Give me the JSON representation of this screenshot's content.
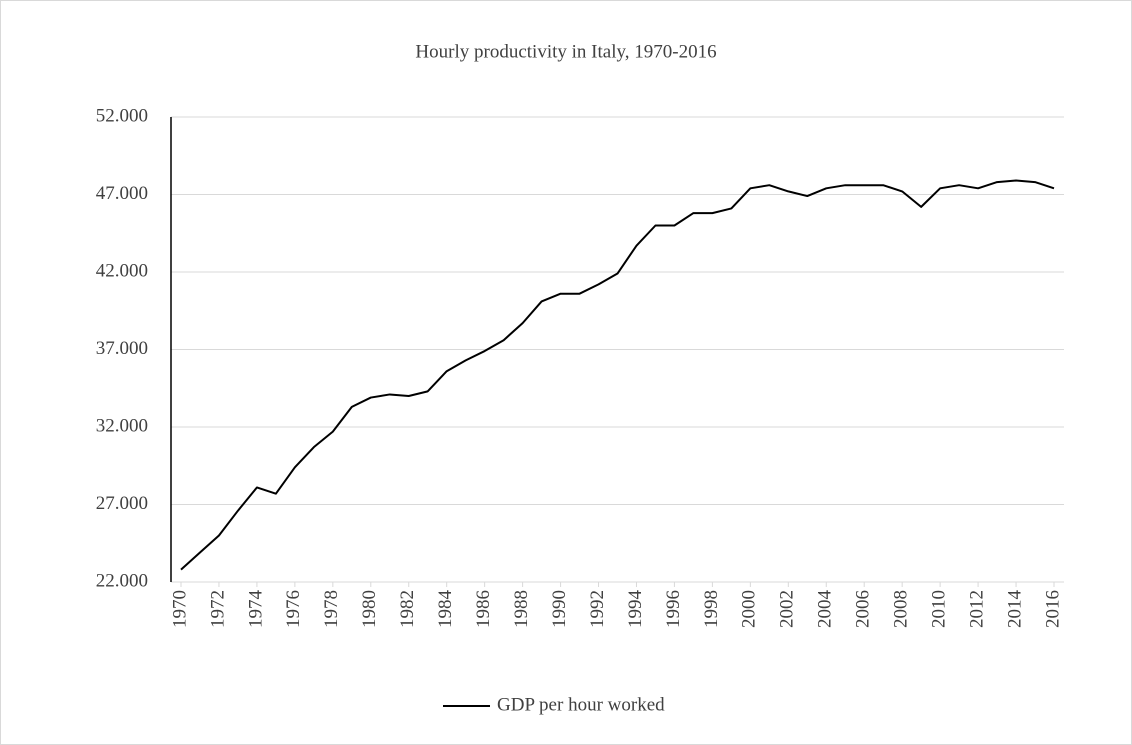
{
  "chart_data": {
    "type": "line",
    "title": "Hourly productivity in Italy, 1970-2016",
    "x": [
      1970,
      1971,
      1972,
      1973,
      1974,
      1975,
      1976,
      1977,
      1978,
      1979,
      1980,
      1981,
      1982,
      1983,
      1984,
      1985,
      1986,
      1987,
      1988,
      1989,
      1990,
      1991,
      1992,
      1993,
      1994,
      1995,
      1996,
      1997,
      1998,
      1999,
      2000,
      2001,
      2002,
      2003,
      2004,
      2005,
      2006,
      2007,
      2008,
      2009,
      2010,
      2011,
      2012,
      2013,
      2014,
      2015,
      2016
    ],
    "series": [
      {
        "name": "GDP per hour worked",
        "color": "#000000",
        "values": [
          22800,
          23900,
          25000,
          26600,
          28100,
          27700,
          29400,
          30700,
          31700,
          33300,
          33900,
          34100,
          34000,
          34300,
          35600,
          36300,
          36900,
          37600,
          38700,
          40100,
          40600,
          40600,
          41200,
          41900,
          43700,
          45000,
          45000,
          45800,
          45800,
          46100,
          47400,
          47600,
          47200,
          46900,
          47400,
          47600,
          47600,
          47600,
          47200,
          46200,
          47400,
          47600,
          47400,
          47800,
          47900,
          47800,
          47400
        ]
      }
    ],
    "xlim": [
      1970,
      2016
    ],
    "xticks": [
      1970,
      1972,
      1974,
      1976,
      1978,
      1980,
      1982,
      1984,
      1986,
      1988,
      1990,
      1992,
      1994,
      1996,
      1998,
      2000,
      2002,
      2004,
      2006,
      2008,
      2010,
      2012,
      2014,
      2016
    ],
    "ylim": [
      22000,
      52000
    ],
    "yticks": [
      {
        "value": 22000,
        "label": "22.000"
      },
      {
        "value": 27000,
        "label": "27.000"
      },
      {
        "value": 32000,
        "label": "32.000"
      },
      {
        "value": 37000,
        "label": "37.000"
      },
      {
        "value": 42000,
        "label": "42.000"
      },
      {
        "value": 47000,
        "label": "47.000"
      },
      {
        "value": 52000,
        "label": "52.000"
      }
    ],
    "grid": true,
    "legend": "bottom"
  }
}
